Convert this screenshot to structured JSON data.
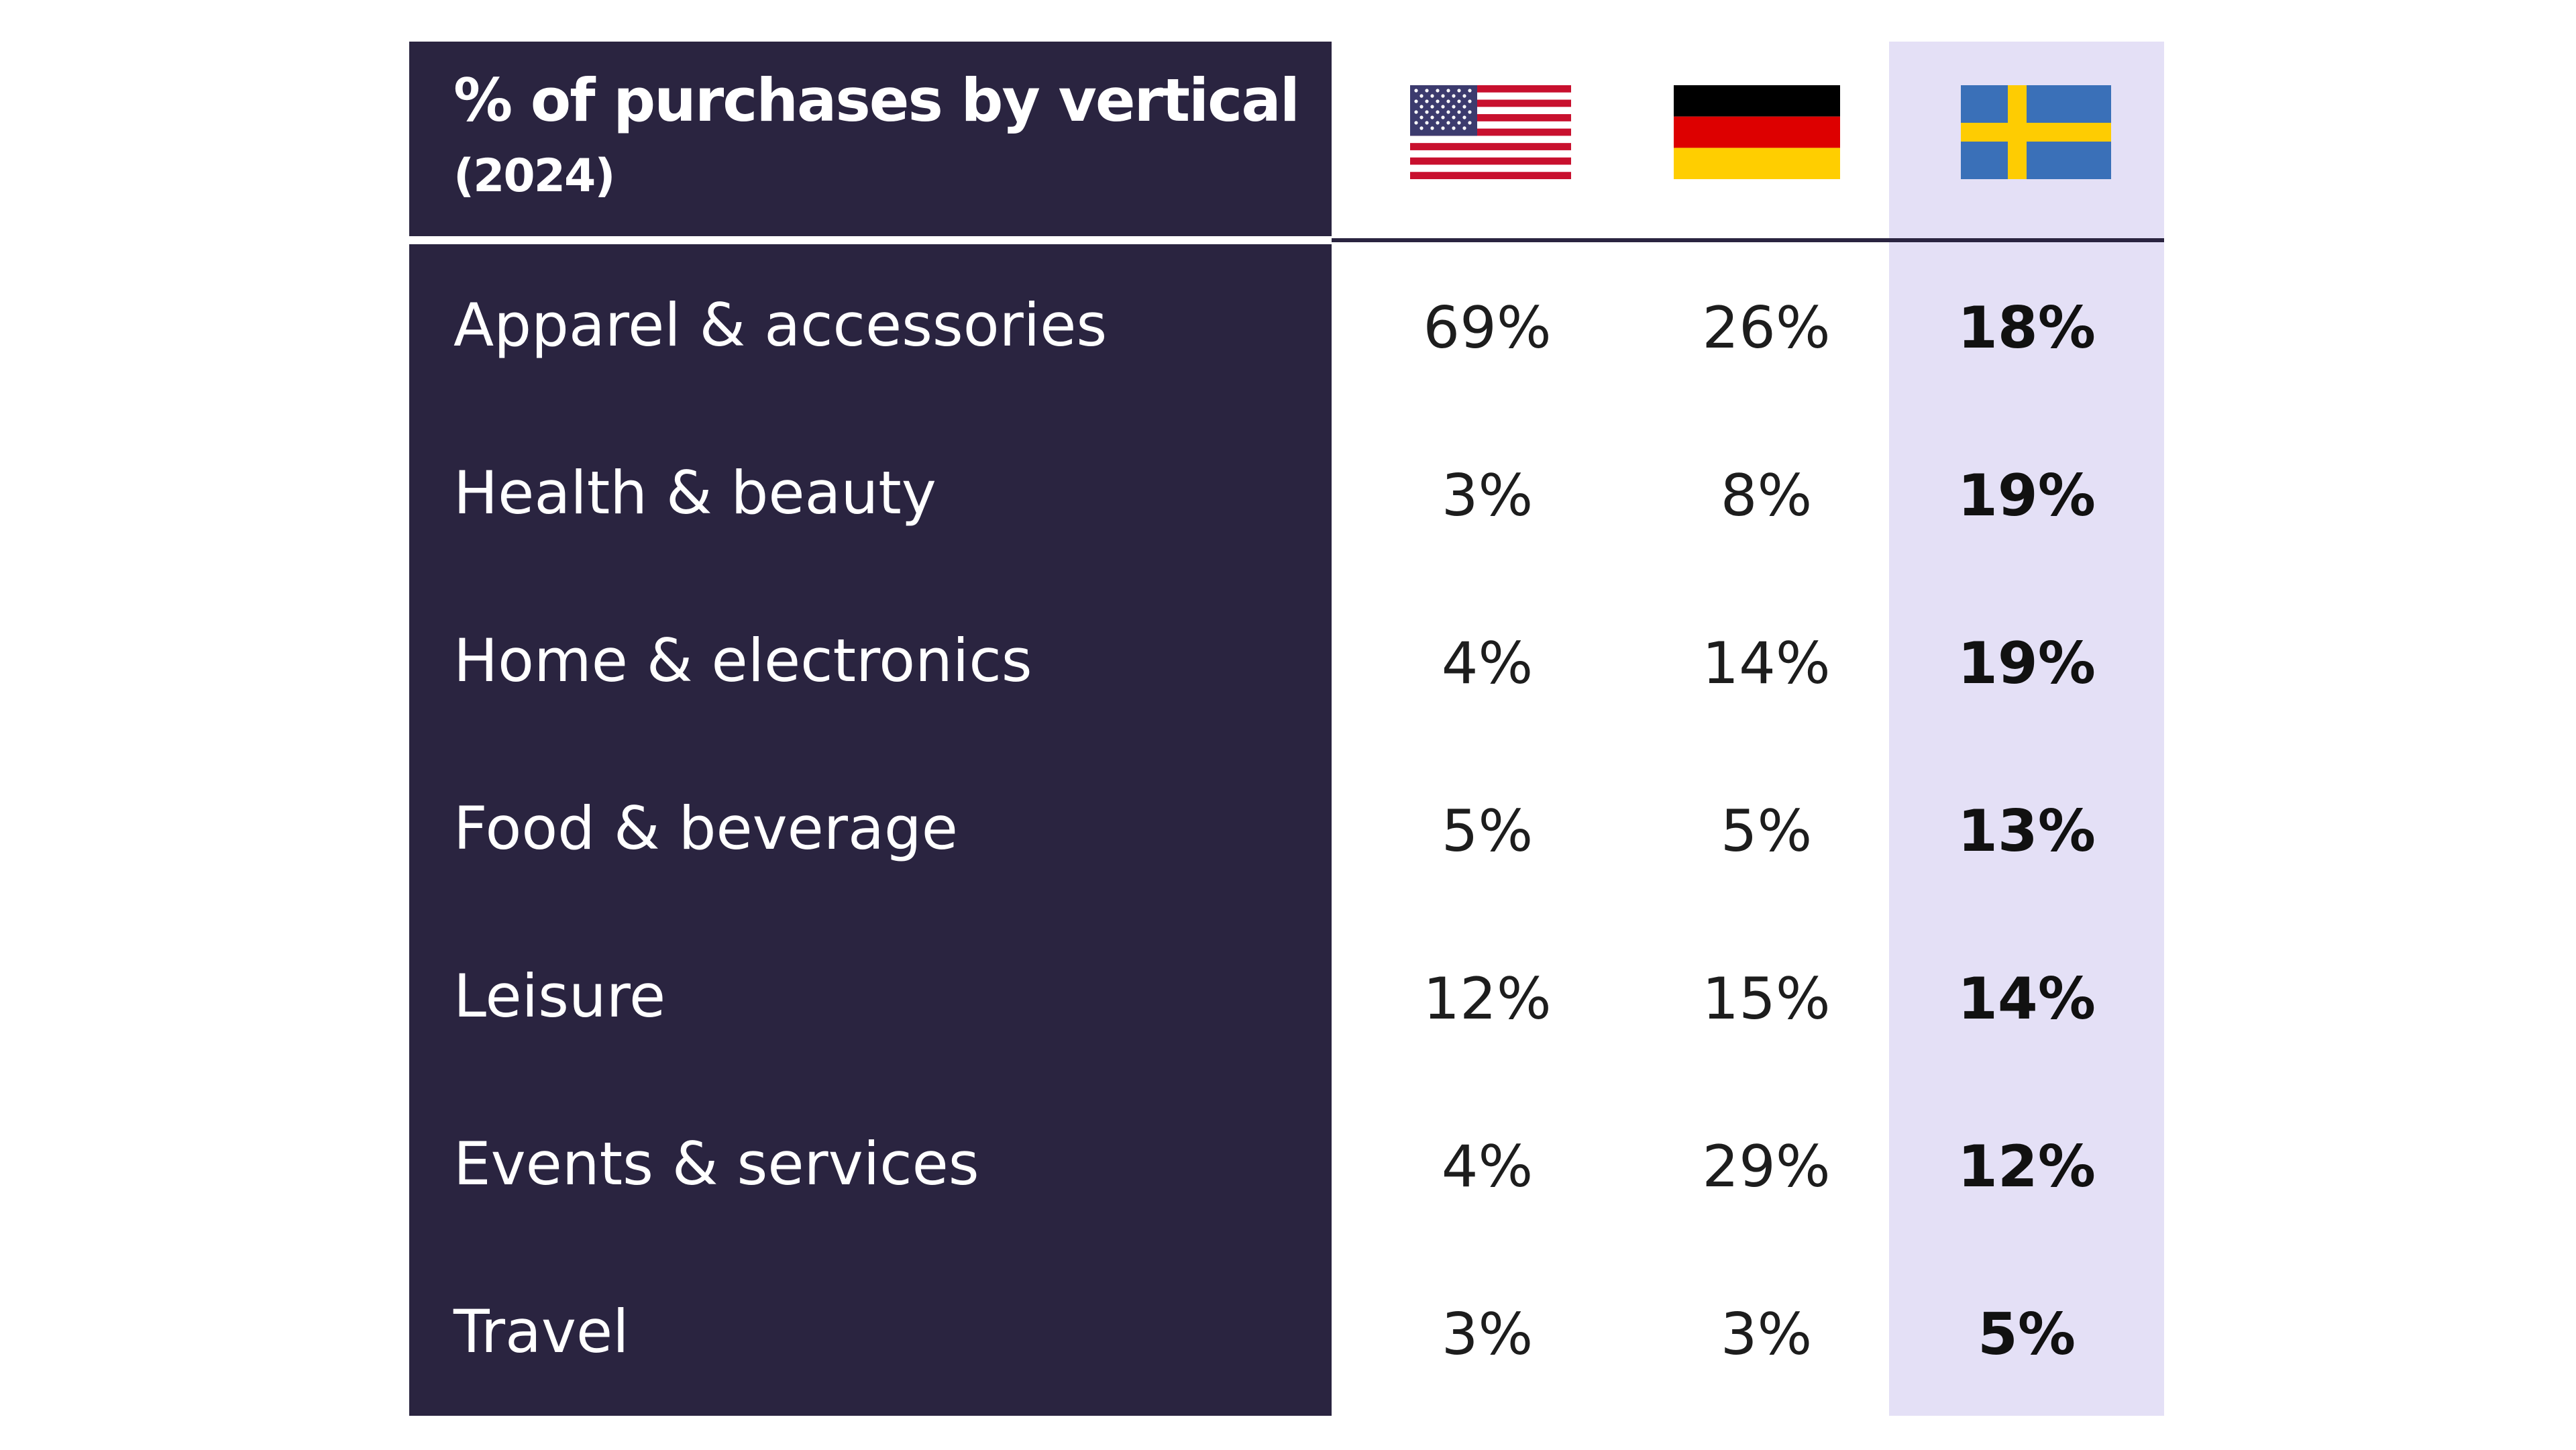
{
  "chart_data": {
    "type": "table",
    "title": "% of purchases by vertical",
    "subtitle": "(2024)",
    "columns": [
      {
        "country": "United States",
        "flag": "us-flag-icon"
      },
      {
        "country": "Germany",
        "flag": "germany-flag-icon"
      },
      {
        "country": "Sweden",
        "flag": "sweden-flag-icon",
        "highlight": true
      }
    ],
    "rows": [
      {
        "label": "Apparel & accessories",
        "values": [
          "69%",
          "26%",
          "18%"
        ]
      },
      {
        "label": "Health & beauty",
        "values": [
          "3%",
          "8%",
          "19%"
        ]
      },
      {
        "label": "Home & electronics",
        "values": [
          "4%",
          "14%",
          "19%"
        ]
      },
      {
        "label": "Food & beverage",
        "values": [
          "5%",
          "5%",
          "13%"
        ]
      },
      {
        "label": "Leisure",
        "values": [
          "12%",
          "15%",
          "14%"
        ]
      },
      {
        "label": "Events & services",
        "values": [
          "4%",
          "29%",
          "12%"
        ]
      },
      {
        "label": "Travel",
        "values": [
          "3%",
          "3%",
          "5%"
        ]
      }
    ]
  },
  "colors": {
    "panel": "#2a2440",
    "highlight_column": "#e4e0f6",
    "text_dark": "#1d1d1d",
    "text_light": "#ffffff"
  }
}
